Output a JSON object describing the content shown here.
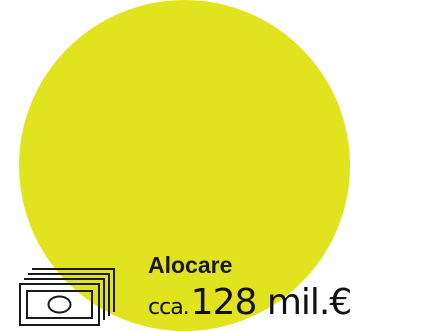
{
  "colors": {
    "circle": "#e2e31f",
    "text": "#111111",
    "icon": "#1a1a1a"
  },
  "icon": "money-stack-icon",
  "allocation": {
    "label": "Alocare",
    "prefix": "cca.",
    "value": "128 mil.€"
  }
}
